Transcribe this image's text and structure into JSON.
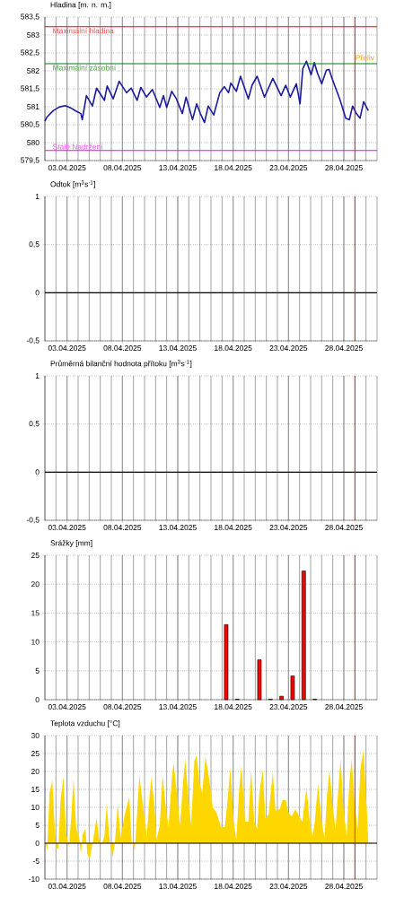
{
  "chart_data": [
    {
      "type": "line",
      "title": "Hladina [m. n. m.]",
      "xlim": [
        "2025-04-01",
        "2025-05-01"
      ],
      "xticks": [
        {
          "value": "2025-04-03",
          "label": "03.04.2025"
        },
        {
          "value": "2025-04-08",
          "label": "08.04.2025"
        },
        {
          "value": "2025-04-13",
          "label": "13.04.2025"
        },
        {
          "value": "2025-04-18",
          "label": "18.04.2025"
        },
        {
          "value": "2025-04-23",
          "label": "23.04.2025"
        },
        {
          "value": "2025-04-28",
          "label": "28.04.2025"
        }
      ],
      "ylim": [
        579.5,
        583.5
      ],
      "yticks": [
        {
          "value": 579.5,
          "label": "579,5"
        },
        580,
        {
          "value": 580.5,
          "label": "580,5"
        },
        581,
        {
          "value": 581.5,
          "label": "581,5"
        },
        582,
        {
          "value": 582.5,
          "label": "582,5"
        },
        583,
        {
          "value": 583.5,
          "label": "583,5"
        }
      ],
      "grid": true,
      "ref_lines": [
        {
          "axis": "y",
          "value": 583.23,
          "label": "Maximální hladina",
          "color": "#ff0000"
        },
        {
          "axis": "y",
          "value": 582.2,
          "label": "Maximální zásobní",
          "color": "#008000"
        },
        {
          "axis": "y",
          "value": 579.78,
          "label": "Stálé Nadržení",
          "color": "#ff00ff"
        },
        {
          "axis": "x",
          "value": "2025-04-29",
          "color": "#ff0000"
        }
      ],
      "annotations": [
        "Přeliv"
      ],
      "series": [
        {
          "color": "#1a1aa0",
          "x": [
            "2025-04-01T00:00",
            "2025-04-01T05:00",
            "2025-04-01T18:00",
            "2025-04-02T07:00",
            "2025-04-02T20:00",
            "2025-04-03T09:00",
            "2025-04-03T19:00",
            "2025-04-04T06:00",
            "2025-04-04T09:00",
            "2025-04-04T18:00",
            "2025-04-05T07:00",
            "2025-04-05T16:00",
            "2025-04-06T09:00",
            "2025-04-06T15:00",
            "2025-04-07T04:00",
            "2025-04-07T17:00",
            "2025-04-08T09:00",
            "2025-04-08T19:00",
            "2025-04-09T08:00",
            "2025-04-09T16:00",
            "2025-04-10T04:00",
            "2025-04-10T17:00",
            "2025-04-11T09:00",
            "2025-04-11T17:00",
            "2025-04-12T00:00",
            "2025-04-12T11:00",
            "2025-04-12T21:00",
            "2025-04-13T10:00",
            "2025-04-13T18:00",
            "2025-04-14T08:00",
            "2025-04-14T17:00",
            "2025-04-15T01:00",
            "2025-04-15T10:00",
            "2025-04-15T18:00",
            "2025-04-16T06:00",
            "2025-04-16T19:00",
            "2025-04-17T05:00",
            "2025-04-17T14:00",
            "2025-04-17T19:00",
            "2025-04-18T07:00",
            "2025-04-18T16:00",
            "2025-04-19T09:00",
            "2025-04-19T17:00",
            "2025-04-20T04:00",
            "2025-04-20T20:00",
            "2025-04-21T14:00",
            "2025-04-22T08:00",
            "2025-04-22T18:00",
            "2025-04-23T04:00",
            "2025-04-23T17:00",
            "2025-04-24T01:00",
            "2025-04-24T07:00",
            "2025-04-24T15:00",
            "2025-04-25T01:00",
            "2025-04-25T08:00",
            "2025-04-25T15:00",
            "2025-04-26T00:00",
            "2025-04-26T10:00",
            "2025-04-26T16:00",
            "2025-04-26T23:00",
            "2025-04-27T15:00",
            "2025-04-28T04:00",
            "2025-04-28T12:00",
            "2025-04-28T19:00",
            "2025-04-29T03:00",
            "2025-04-29T11:00",
            "2025-04-29T19:00",
            "2025-04-30T05:00"
          ],
          "values": [
            580.6,
            580.72,
            580.89,
            580.99,
            581.03,
            580.96,
            580.88,
            580.81,
            580.64,
            581.31,
            581.02,
            581.52,
            581.18,
            581.58,
            581.22,
            581.71,
            581.39,
            581.52,
            581.18,
            581.54,
            581.27,
            581.48,
            580.98,
            581.31,
            580.98,
            581.43,
            581.22,
            580.81,
            581.27,
            580.64,
            581.08,
            580.81,
            580.56,
            581.02,
            580.77,
            581.39,
            581.56,
            581.39,
            581.66,
            581.43,
            581.85,
            581.22,
            581.6,
            581.85,
            581.27,
            581.79,
            581.31,
            581.6,
            581.27,
            581.64,
            581.08,
            582.06,
            582.27,
            581.89,
            582.23,
            581.93,
            581.64,
            582.02,
            582.04,
            581.77,
            581.22,
            580.68,
            580.64,
            581.02,
            580.81,
            580.68,
            581.14,
            580.89
          ]
        }
      ]
    },
    {
      "type": "line",
      "title": "Odtok [m$^{3}$s$^{-1}$]",
      "xlim": [
        "2025-04-01",
        "2025-05-01"
      ],
      "xticks": [
        {
          "value": "2025-04-03",
          "label": "03.04.2025"
        },
        {
          "value": "2025-04-08",
          "label": "08.04.2025"
        },
        {
          "value": "2025-04-13",
          "label": "13.04.2025"
        },
        {
          "value": "2025-04-18",
          "label": "18.04.2025"
        },
        {
          "value": "2025-04-23",
          "label": "23.04.2025"
        },
        {
          "value": "2025-04-28",
          "label": "28.04.2025"
        }
      ],
      "ylim": [
        -0.5,
        1
      ],
      "yticks": [
        {
          "value": -0.5,
          "label": "-0,5"
        },
        0,
        {
          "value": 0.5,
          "label": "0,5"
        },
        1
      ],
      "grid": true,
      "ref_lines": [
        {
          "axis": "y",
          "value": 0,
          "color": "#000000"
        },
        {
          "axis": "x",
          "value": "2025-04-29",
          "color": "#ff0000"
        }
      ]
    },
    {
      "type": "line",
      "title": "Průměrná bilanční hodnota přítoku [m$^{3}$s$^{-1}$]",
      "xlim": [
        "2025-04-01",
        "2025-05-01"
      ],
      "xticks": [
        {
          "value": "2025-04-03",
          "label": "03.04.2025"
        },
        {
          "value": "2025-04-08",
          "label": "08.04.2025"
        },
        {
          "value": "2025-04-13",
          "label": "13.04.2025"
        },
        {
          "value": "2025-04-18",
          "label": "18.04.2025"
        },
        {
          "value": "2025-04-23",
          "label": "23.04.2025"
        },
        {
          "value": "2025-04-28",
          "label": "28.04.2025"
        }
      ],
      "ylim": [
        -0.5,
        1
      ],
      "yticks": [
        {
          "value": -0.5,
          "label": "-0,5"
        },
        0,
        {
          "value": 0.5,
          "label": "0,5"
        },
        1
      ],
      "grid": true,
      "ref_lines": [
        {
          "axis": "y",
          "value": 0,
          "color": "#000000"
        },
        {
          "axis": "x",
          "value": "2025-04-29",
          "color": "#ff0000"
        }
      ]
    },
    {
      "type": "bar",
      "title": "Srážky [mm]",
      "xlim": [
        "2025-04-01",
        "2025-05-01"
      ],
      "xticks": [
        {
          "value": "2025-04-03",
          "label": "03.04.2025"
        },
        {
          "value": "2025-04-08",
          "label": "08.04.2025"
        },
        {
          "value": "2025-04-13",
          "label": "13.04.2025"
        },
        {
          "value": "2025-04-18",
          "label": "18.04.2025"
        },
        {
          "value": "2025-04-23",
          "label": "23.04.2025"
        },
        {
          "value": "2025-04-28",
          "label": "28.04.2025"
        }
      ],
      "ylim": [
        0,
        25
      ],
      "yticks": [
        0,
        5,
        10,
        15,
        20,
        25
      ],
      "grid": true,
      "ref_lines": [
        {
          "axis": "x",
          "value": "2025-04-29",
          "color": "#ff0000"
        }
      ],
      "series": [
        {
          "color": "#ff0000",
          "x": [
            "2025-04-17T09:00",
            "2025-04-18T09:00",
            "2025-04-20T09:00",
            "2025-04-21T09:00",
            "2025-04-22T09:00",
            "2025-04-23T09:00",
            "2025-04-24T09:00",
            "2025-04-25T09:00"
          ],
          "values": [
            13.0,
            0.1,
            6.9,
            0.1,
            0.6,
            4.1,
            22.3,
            0.1
          ]
        }
      ]
    },
    {
      "type": "area",
      "title": "Teplota vzduchu [°C]",
      "xlim": [
        "2025-04-01",
        "2025-05-01"
      ],
      "xticks": [
        {
          "value": "2025-04-03",
          "label": "03.04.2025"
        },
        {
          "value": "2025-04-08",
          "label": "08.04.2025"
        },
        {
          "value": "2025-04-13",
          "label": "13.04.2025"
        },
        {
          "value": "2025-04-18",
          "label": "18.04.2025"
        },
        {
          "value": "2025-04-23",
          "label": "23.04.2025"
        },
        {
          "value": "2025-04-28",
          "label": "28.04.2025"
        }
      ],
      "ylim": [
        -10,
        30
      ],
      "yticks": [
        -10,
        -5,
        0,
        5,
        10,
        15,
        20,
        25,
        30
      ],
      "grid": true,
      "ref_lines": [
        {
          "axis": "y",
          "value": 0,
          "color": "#000000"
        },
        {
          "axis": "x",
          "value": "2025-04-29",
          "color": "#ff0000"
        }
      ],
      "series": [
        {
          "color": "#ffd700",
          "x": [
            "2025-04-01T00:00",
            "2025-04-01T05:00",
            "2025-04-01T10:00",
            "2025-04-01T16:00",
            "2025-04-01T21:00",
            "2025-04-02T01:00",
            "2025-04-02T05:00",
            "2025-04-02T10:00",
            "2025-04-02T16:00",
            "2025-04-02T22:00",
            "2025-04-03T04:00",
            "2025-04-03T09:00",
            "2025-04-03T14:00",
            "2025-04-03T20:00",
            "2025-04-04T02:00",
            "2025-04-04T06:00",
            "2025-04-04T10:00",
            "2025-04-04T16:00",
            "2025-04-04T20:00",
            "2025-04-05T01:00",
            "2025-04-05T08:00",
            "2025-04-05T16:00",
            "2025-04-05T22:00",
            "2025-04-06T03:00",
            "2025-04-06T09:00",
            "2025-04-06T14:00",
            "2025-04-06T20:00",
            "2025-04-07T03:00",
            "2025-04-07T08:00",
            "2025-04-07T14:00",
            "2025-04-07T20:00",
            "2025-04-08T05:00",
            "2025-04-08T15:00",
            "2025-04-08T20:00",
            "2025-04-09T03:00",
            "2025-04-09T09:00",
            "2025-04-09T13:00",
            "2025-04-09T20:00",
            "2025-04-10T05:00",
            "2025-04-10T10:00",
            "2025-04-10T15:00",
            "2025-04-10T21:00",
            "2025-04-11T02:00",
            "2025-04-11T09:00",
            "2025-04-11T15:00",
            "2025-04-11T22:00",
            "2025-04-12T04:00",
            "2025-04-12T11:00",
            "2025-04-12T15:00",
            "2025-04-12T22:00",
            "2025-04-13T05:00",
            "2025-04-13T11:00",
            "2025-04-13T16:00",
            "2025-04-13T23:00",
            "2025-04-14T05:00",
            "2025-04-14T12:00",
            "2025-04-14T17:00",
            "2025-04-14T23:00",
            "2025-04-15T05:00",
            "2025-04-15T12:00",
            "2025-04-15T20:00",
            "2025-04-16T04:00",
            "2025-04-16T12:00",
            "2025-04-16T22:00",
            "2025-04-17T06:00",
            "2025-04-17T12:00",
            "2025-04-17T18:00",
            "2025-04-18T01:00",
            "2025-04-18T07:00",
            "2025-04-18T13:00",
            "2025-04-18T18:00",
            "2025-04-19T02:00",
            "2025-04-19T09:00",
            "2025-04-19T15:00",
            "2025-04-19T22:00",
            "2025-04-20T04:00",
            "2025-04-20T09:00",
            "2025-04-20T16:00",
            "2025-04-20T22:00",
            "2025-04-21T05:00",
            "2025-04-21T14:00",
            "2025-04-21T20:00",
            "2025-04-22T05:00",
            "2025-04-22T11:00",
            "2025-04-22T18:00",
            "2025-04-23T00:00",
            "2025-04-23T07:00",
            "2025-04-23T15:00",
            "2025-04-23T23:00",
            "2025-04-24T06:00",
            "2025-04-24T15:00",
            "2025-04-24T22:00",
            "2025-04-25T04:00",
            "2025-04-25T09:00",
            "2025-04-25T16:00",
            "2025-04-26T00:00",
            "2025-04-26T06:00",
            "2025-04-26T12:00",
            "2025-04-26T17:00",
            "2025-04-27T00:00",
            "2025-04-27T06:00",
            "2025-04-27T12:00",
            "2025-04-27T17:00",
            "2025-04-27T23:00",
            "2025-04-28T06:00",
            "2025-04-28T12:00",
            "2025-04-28T17:00",
            "2025-04-28T23:00",
            "2025-04-29T06:00",
            "2025-04-29T12:00",
            "2025-04-29T19:00",
            "2025-04-29T23:00",
            "2025-04-30T03:00",
            "2025-04-30T05:00"
          ],
          "values": [
            0.5,
            -2,
            14,
            17.5,
            5,
            -1.5,
            -1.5,
            12,
            18.5,
            3,
            -1,
            7,
            18,
            4,
            2,
            -3,
            2.5,
            4,
            -3,
            -4.5,
            0.5,
            7,
            1,
            -0.5,
            2,
            11,
            1,
            -4,
            0.5,
            11,
            1.5,
            8,
            13,
            0.5,
            -2,
            11,
            19,
            11,
            2,
            12,
            18.5,
            11,
            1,
            5,
            19,
            10,
            4.5,
            18,
            22.5,
            14,
            5,
            16,
            23.5,
            13,
            5,
            23,
            24.5,
            17,
            14,
            24,
            18,
            10,
            8.5,
            4.5,
            4.5,
            12,
            21,
            6,
            1,
            15,
            21.5,
            6,
            6,
            20.5,
            6,
            4,
            14,
            20.5,
            7,
            8,
            20,
            9,
            9.5,
            12,
            12,
            8.5,
            7.5,
            9.5,
            7.5,
            6,
            15.5,
            6,
            2,
            6,
            16.5,
            6,
            1.5,
            14,
            20.5,
            10,
            4,
            15,
            23.5,
            10,
            2,
            17,
            23.5,
            11,
            4,
            21,
            26,
            15,
            6.5,
            0
          ]
        }
      ]
    }
  ]
}
